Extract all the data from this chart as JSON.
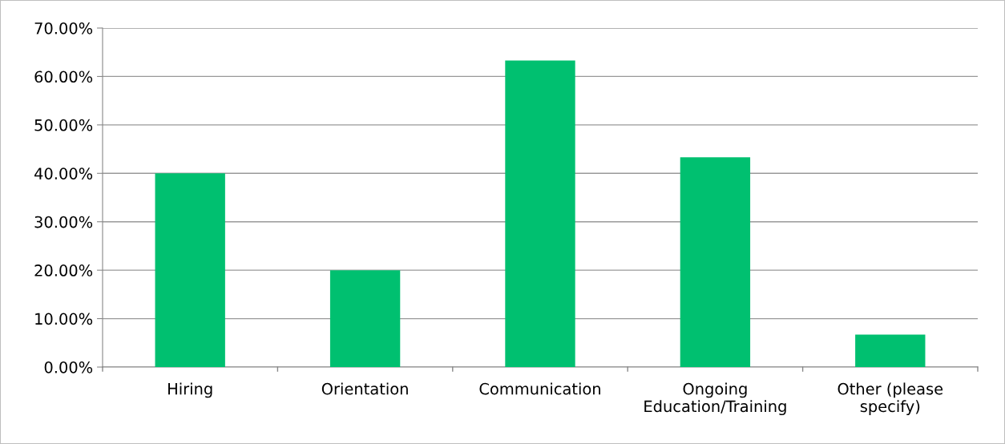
{
  "chart_data": {
    "type": "bar",
    "categories": [
      "Hiring",
      "Orientation",
      "Communication",
      "Ongoing\nEducation/Training",
      "Other (please\nspecify)"
    ],
    "values": [
      40.0,
      20.0,
      63.3,
      43.3,
      6.7
    ],
    "color": "#00c070",
    "ylim": [
      0,
      70
    ],
    "yticks": [
      {
        "value": 0,
        "label": "0.00%"
      },
      {
        "value": 10,
        "label": "10.00%"
      },
      {
        "value": 20,
        "label": "20.00%"
      },
      {
        "value": 30,
        "label": "30.00%"
      },
      {
        "value": 40,
        "label": "40.00%"
      },
      {
        "value": 50,
        "label": "50.00%"
      },
      {
        "value": 60,
        "label": "60.00%"
      },
      {
        "value": 70,
        "label": "70.00%"
      }
    ],
    "grid": "y"
  }
}
